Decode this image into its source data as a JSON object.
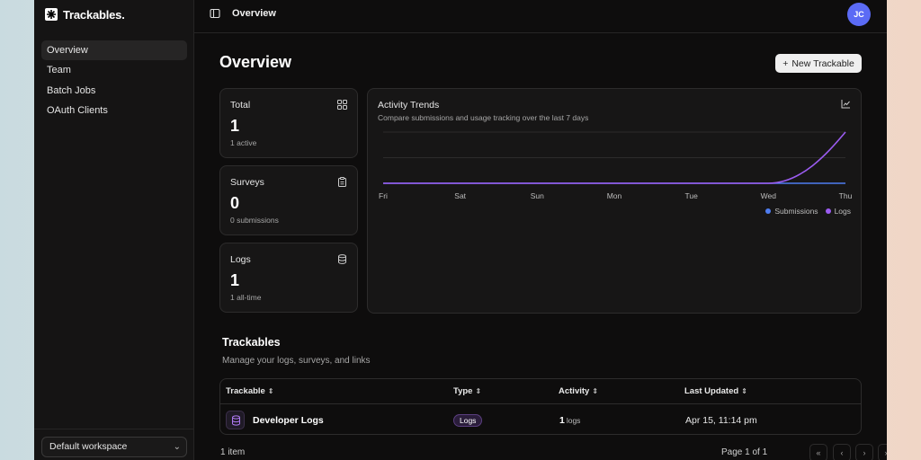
{
  "app": {
    "name": "Trackables."
  },
  "sidebar": {
    "items": [
      {
        "label": "Overview",
        "active": true
      },
      {
        "label": "Team"
      },
      {
        "label": "Batch Jobs"
      },
      {
        "label": "OAuth Clients"
      }
    ],
    "workspace": "Default workspace"
  },
  "topbar": {
    "breadcrumb": "Overview",
    "avatar_initials": "JC"
  },
  "page": {
    "title": "Overview",
    "new_button": "New Trackable"
  },
  "stats": [
    {
      "label": "Total",
      "value": "1",
      "sub": "1 active",
      "icon": "grid-icon"
    },
    {
      "label": "Surveys",
      "value": "0",
      "sub": "0 submissions",
      "icon": "clipboard-icon"
    },
    {
      "label": "Logs",
      "value": "1",
      "sub": "1 all-time",
      "icon": "database-icon"
    }
  ],
  "activity": {
    "title": "Activity Trends",
    "subtitle": "Compare submissions and usage tracking over the last 7 days",
    "icon": "line-chart-icon"
  },
  "chart_data": {
    "type": "line",
    "title": "Activity Trends",
    "x": [
      "Fri",
      "Sat",
      "Sun",
      "Mon",
      "Tue",
      "Wed",
      "Thu"
    ],
    "series": [
      {
        "name": "Submissions",
        "values": [
          0,
          0,
          0,
          0,
          0,
          0,
          0
        ],
        "color": "#4f7df0"
      },
      {
        "name": "Logs",
        "values": [
          0,
          0,
          0,
          0,
          0,
          0,
          1
        ],
        "color": "#9b5cf0"
      }
    ],
    "ylim": [
      0,
      1
    ],
    "grid": true,
    "legend": "bottom-right"
  },
  "trackables": {
    "title": "Trackables",
    "subtitle": "Manage your logs, surveys, and links",
    "columns": [
      "Trackable",
      "Type",
      "Activity",
      "Last Updated"
    ],
    "rows": [
      {
        "name": "Developer Logs",
        "type": "Logs",
        "activity_count": "1",
        "activity_unit": "logs",
        "updated": "Apr 15, 11:14 pm"
      }
    ],
    "count": "1 item",
    "page": "Page 1 of 1"
  }
}
